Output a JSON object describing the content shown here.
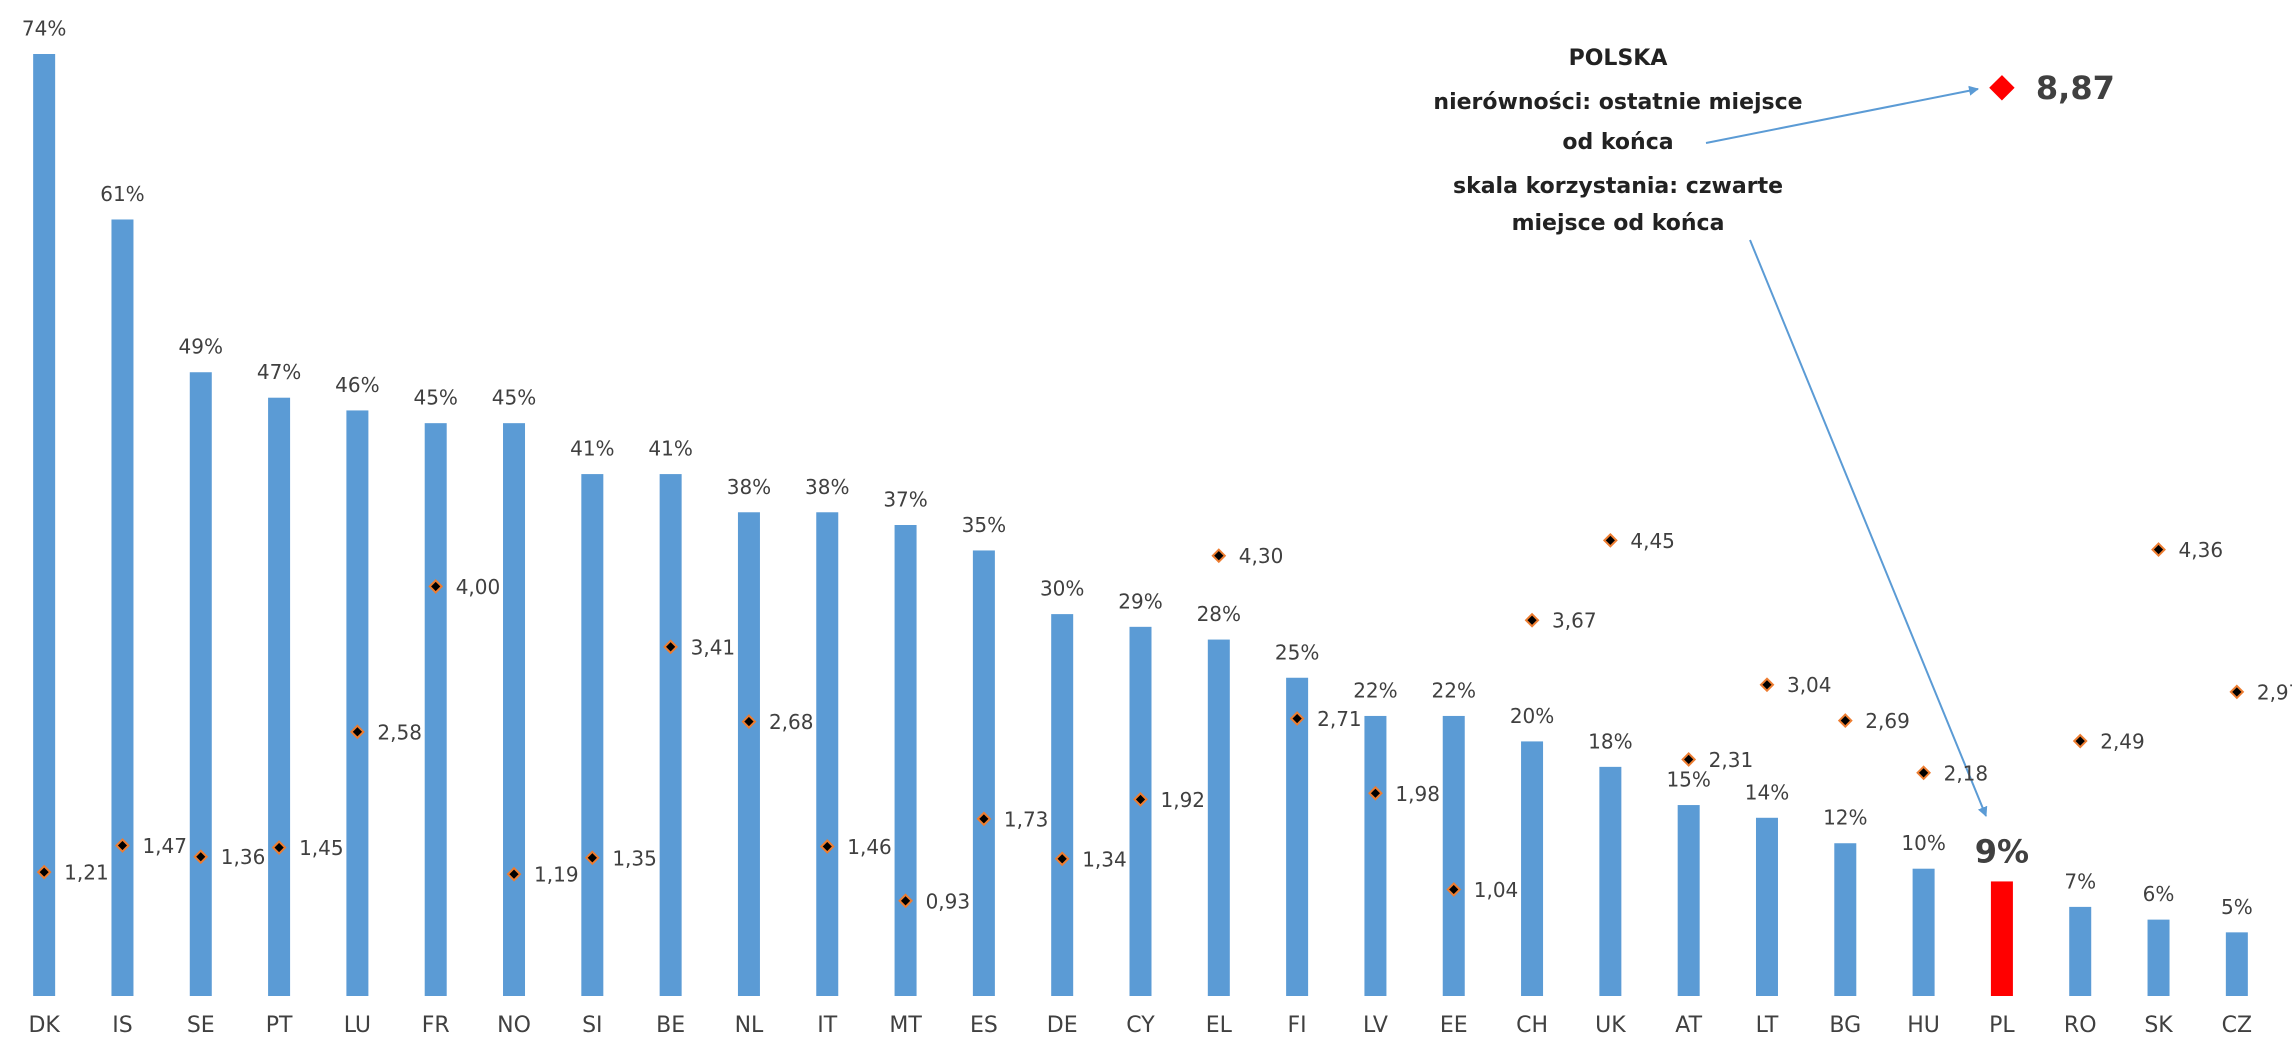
{
  "chart_data": {
    "type": "bar",
    "categories": [
      "DK",
      "IS",
      "SE",
      "PT",
      "LU",
      "FR",
      "NO",
      "SI",
      "BE",
      "NL",
      "IT",
      "MT",
      "ES",
      "DE",
      "CY",
      "EL",
      "FI",
      "LV",
      "EE",
      "CH",
      "UK",
      "AT",
      "LT",
      "BG",
      "HU",
      "PL",
      "RO",
      "SK",
      "CZ"
    ],
    "series": [
      {
        "type": "bar",
        "color": "#5b9bd5",
        "colors": [
          "#5b9bd5",
          "#5b9bd5",
          "#5b9bd5",
          "#5b9bd5",
          "#5b9bd5",
          "#5b9bd5",
          "#5b9bd5",
          "#5b9bd5",
          "#5b9bd5",
          "#5b9bd5",
          "#5b9bd5",
          "#5b9bd5",
          "#5b9bd5",
          "#5b9bd5",
          "#5b9bd5",
          "#5b9bd5",
          "#5b9bd5",
          "#5b9bd5",
          "#5b9bd5",
          "#5b9bd5",
          "#5b9bd5",
          "#5b9bd5",
          "#5b9bd5",
          "#5b9bd5",
          "#5b9bd5",
          "#ff0000",
          "#5b9bd5",
          "#5b9bd5",
          "#5b9bd5"
        ],
        "values": [
          74,
          61,
          49,
          47,
          46,
          45,
          45,
          41,
          41,
          38,
          38,
          37,
          35,
          30,
          29,
          28,
          25,
          22,
          22,
          20,
          18,
          15,
          14,
          12,
          10,
          9,
          7,
          6,
          5
        ],
        "value_labels": [
          "74%",
          "61%",
          "49%",
          "47%",
          "46%",
          "45%",
          "45%",
          "41%",
          "41%",
          "38%",
          "38%",
          "37%",
          "35%",
          "30%",
          "29%",
          "28%",
          "25%",
          "22%",
          "22%",
          "20%",
          "18%",
          "15%",
          "14%",
          "12%",
          "10%",
          "9%",
          "7%",
          "6%",
          "5%"
        ]
      },
      {
        "type": "scatter",
        "axis": "y2",
        "color": "#000000",
        "colors": [
          "#000000",
          "#000000",
          "#000000",
          "#000000",
          "#000000",
          "#000000",
          "#000000",
          "#000000",
          "#000000",
          "#000000",
          "#000000",
          "#000000",
          "#000000",
          "#000000",
          "#000000",
          "#000000",
          "#000000",
          "#000000",
          "#000000",
          "#000000",
          "#000000",
          "#000000",
          "#000000",
          "#000000",
          "#000000",
          "#ff0000",
          "#000000",
          "#000000",
          "#000000"
        ],
        "values": [
          1.21,
          1.47,
          1.36,
          1.45,
          2.58,
          4.0,
          1.19,
          1.35,
          3.41,
          2.68,
          1.46,
          0.93,
          1.73,
          1.34,
          1.92,
          4.3,
          2.71,
          1.98,
          1.04,
          3.67,
          4.45,
          2.31,
          3.04,
          2.69,
          2.18,
          8.87,
          2.49,
          4.36,
          2.97
        ],
        "value_labels": [
          "1,21",
          "1,47",
          "1,36",
          "1,45",
          "2,58",
          "4,00",
          "1,19",
          "1,35",
          "3,41",
          "2,68",
          "1,46",
          "0,93",
          "1,73",
          "1,34",
          "1,92",
          "4,30",
          "2,71",
          "1,98",
          "1,04",
          "3,67",
          "4,45",
          "2,31",
          "3,04",
          "2,69",
          "2,18",
          "8,87",
          "2,49",
          "4,36",
          "2,97"
        ]
      }
    ],
    "ylim": [
      0,
      74
    ],
    "y2lim": [
      0,
      9.2
    ],
    "annotations": [
      "POLSKA",
      "nierówności: ostatnie miejsce",
      "od końca",
      "skala korzystania: czwarte",
      "miejsce od końca"
    ]
  }
}
